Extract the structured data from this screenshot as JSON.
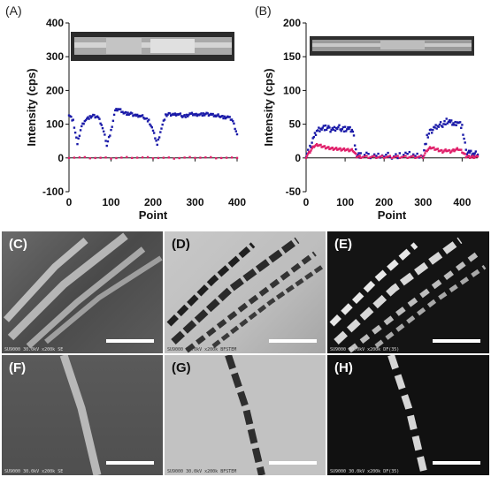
{
  "chart_data": [
    {
      "panel": "(A)",
      "type": "scatter",
      "xlabel": "Point",
      "ylabel": "Intensity (cps)",
      "xlim": [
        0,
        400
      ],
      "ylim": [
        -100,
        400
      ],
      "xticks": [
        0,
        100,
        200,
        300,
        400
      ],
      "yticks": [
        -100,
        0,
        100,
        200,
        300,
        400
      ],
      "series": [
        {
          "color": "#1a1aa8",
          "x": [
            0,
            10,
            20,
            30,
            40,
            50,
            60,
            70,
            80,
            90,
            100,
            110,
            120,
            130,
            140,
            150,
            160,
            170,
            180,
            190,
            200,
            210,
            220,
            230,
            240,
            250,
            260,
            270,
            280,
            290,
            300,
            310,
            320,
            330,
            340,
            350,
            360,
            370,
            380,
            390,
            400
          ],
          "values": [
            130,
            110,
            40,
            95,
            115,
            120,
            125,
            120,
            90,
            40,
            80,
            140,
            145,
            135,
            130,
            130,
            125,
            125,
            120,
            110,
            80,
            40,
            90,
            125,
            130,
            128,
            130,
            125,
            125,
            130,
            128,
            130,
            128,
            130,
            128,
            125,
            125,
            120,
            120,
            110,
            70
          ]
        },
        {
          "color": "#e0206a",
          "x": [
            0,
            50,
            100,
            150,
            200,
            250,
            300,
            350,
            400
          ],
          "values": [
            2,
            1,
            0,
            2,
            1,
            0,
            2,
            1,
            0
          ]
        }
      ]
    },
    {
      "panel": "(B)",
      "type": "scatter",
      "xlabel": "Point",
      "ylabel": "Intensity (cps)",
      "xlim": [
        0,
        440
      ],
      "ylim": [
        -50,
        200
      ],
      "xticks": [
        0,
        100,
        200,
        300,
        400
      ],
      "yticks": [
        -50,
        0,
        50,
        100,
        150,
        200
      ],
      "series": [
        {
          "color": "#1a1aa8",
          "x": [
            0,
            10,
            20,
            30,
            40,
            50,
            60,
            70,
            80,
            90,
            100,
            110,
            120,
            130,
            140,
            160,
            180,
            200,
            220,
            240,
            260,
            280,
            300,
            310,
            320,
            330,
            340,
            350,
            360,
            370,
            380,
            390,
            400,
            410,
            420,
            430,
            440
          ],
          "values": [
            5,
            15,
            30,
            42,
            45,
            44,
            43,
            42,
            45,
            44,
            43,
            42,
            40,
            5,
            3,
            4,
            3,
            4,
            3,
            4,
            5,
            4,
            5,
            30,
            40,
            45,
            48,
            50,
            55,
            52,
            50,
            55,
            45,
            10,
            8,
            6,
            5
          ]
        },
        {
          "color": "#e0206a",
          "x": [
            0,
            10,
            20,
            30,
            40,
            50,
            60,
            70,
            80,
            90,
            100,
            110,
            120,
            130,
            140,
            160,
            180,
            200,
            220,
            240,
            260,
            280,
            300,
            310,
            320,
            330,
            340,
            350,
            360,
            370,
            380,
            390,
            400,
            410,
            420,
            430,
            440
          ],
          "values": [
            2,
            10,
            18,
            20,
            18,
            16,
            15,
            14,
            14,
            13,
            13,
            12,
            12,
            3,
            2,
            2,
            2,
            2,
            2,
            2,
            2,
            2,
            2,
            12,
            16,
            14,
            12,
            10,
            12,
            10,
            12,
            14,
            10,
            3,
            2,
            2,
            2
          ]
        }
      ]
    }
  ],
  "panels": {
    "a": "(A)",
    "b": "(B)",
    "c": "(C)",
    "d": "(D)",
    "e": "(E)",
    "f": "(F)",
    "g": "(G)",
    "h": "(H)"
  },
  "footers": {
    "c": "SU9000 30.0kV x200k SE",
    "d": "SU9000 30.0kV x200k BFSTEM",
    "e": "SU9000 30.0kV x200k DF(35)",
    "f": "SU9000 30.0kV x200k SE",
    "g": "SU9000 30.0kV x200k BFSTEM",
    "h": "SU9000 30.0kV x200k DF(35)"
  },
  "colors": {
    "blue_series": "#1a1aa8",
    "pink_series": "#e0206a"
  }
}
